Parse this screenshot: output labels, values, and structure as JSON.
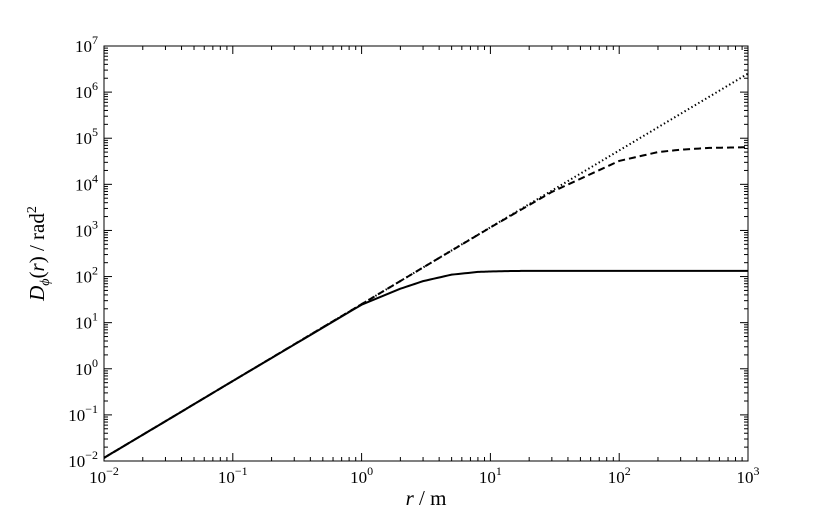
{
  "chart_data": {
    "type": "line",
    "title": "",
    "xscale": "log",
    "yscale": "log",
    "xlim": [
      0.01,
      1000
    ],
    "ylim": [
      0.01,
      10000000
    ],
    "grid": false,
    "legend": "none",
    "x_ticks": [
      {
        "base": "10",
        "exp": "−2"
      },
      {
        "base": "10",
        "exp": "−1"
      },
      {
        "base": "10",
        "exp": "0"
      },
      {
        "base": "10",
        "exp": "1"
      },
      {
        "base": "10",
        "exp": "2"
      },
      {
        "base": "10",
        "exp": "3"
      }
    ],
    "y_ticks": [
      {
        "base": "10",
        "exp": "−2"
      },
      {
        "base": "10",
        "exp": "−1"
      },
      {
        "base": "10",
        "exp": "0"
      },
      {
        "base": "10",
        "exp": "1"
      },
      {
        "base": "10",
        "exp": "2"
      },
      {
        "base": "10",
        "exp": "3"
      },
      {
        "base": "10",
        "exp": "4"
      },
      {
        "base": "10",
        "exp": "5"
      },
      {
        "base": "10",
        "exp": "6"
      },
      {
        "base": "10",
        "exp": "7"
      }
    ],
    "xlabel": {
      "var": "r",
      "rest": " / m"
    },
    "ylabel": {
      "var": "D",
      "sub": "ϕ",
      "mid": "(",
      "arg": "r",
      "end": ") / rad",
      "sup": "2"
    },
    "series": [
      {
        "style": "solid",
        "color": "#000000",
        "x": [
          0.01,
          0.03,
          0.1,
          0.3,
          1,
          2,
          3,
          5,
          8,
          10,
          15,
          20,
          30,
          50,
          100,
          300,
          1000
        ],
        "y": [
          0.0117,
          0.0727,
          0.543,
          3.35,
          24.5,
          54.5,
          79.5,
          110,
          126,
          129,
          132,
          133,
          133,
          133,
          133,
          133,
          133
        ]
      },
      {
        "style": "dashed",
        "color": "#000000",
        "x": [
          0.01,
          0.03,
          0.1,
          0.3,
          1,
          3,
          10,
          30,
          100,
          200,
          300,
          500,
          700,
          1000
        ],
        "y": [
          0.0117,
          0.0727,
          0.544,
          3.39,
          25.2,
          157,
          1160,
          6850,
          32200,
          50000,
          56500,
          61600,
          62700,
          63800
        ]
      },
      {
        "style": "dotted",
        "color": "#000000",
        "x": [
          0.01,
          0.1,
          1,
          10,
          100,
          1000
        ],
        "y": [
          0.0117,
          0.543,
          25.2,
          1170,
          54300,
          2520000
        ]
      }
    ]
  }
}
